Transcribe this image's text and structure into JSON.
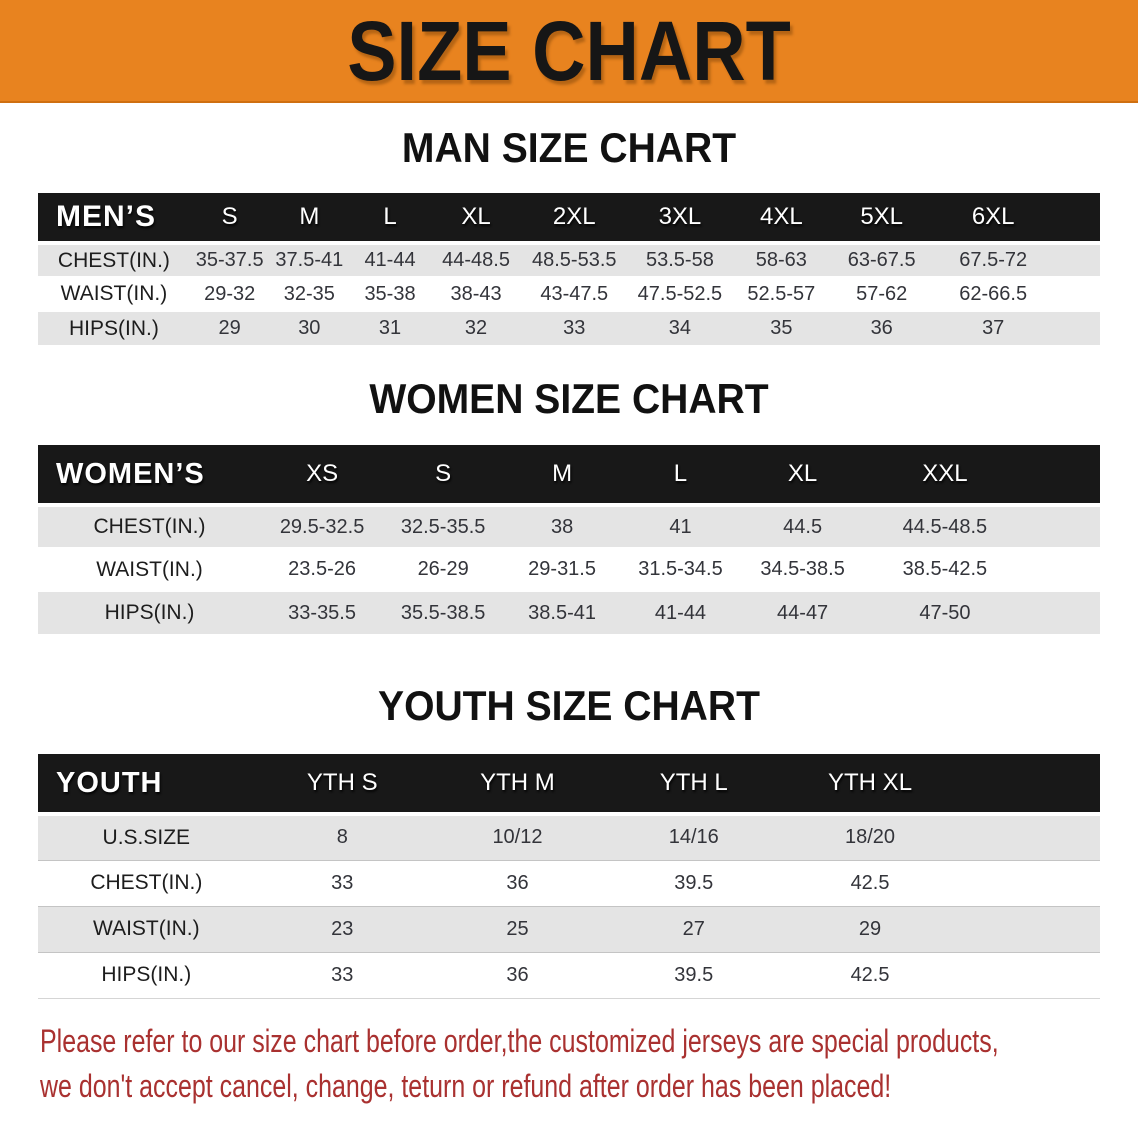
{
  "banner": {
    "title": "SIZE CHART"
  },
  "sections": [
    {
      "id": "men",
      "heading": "MAN SIZE CHART",
      "table": {
        "header_label": "MEN’S",
        "columns": [
          "S",
          "M",
          "L",
          "XL",
          "2XL",
          "3XL",
          "4XL",
          "5XL",
          "6XL"
        ],
        "rows": [
          {
            "label": "CHEST(IN.)",
            "values": [
              "35-37.5",
              "37.5-41",
              "41-44",
              "44-48.5",
              "48.5-53.5",
              "53.5-58",
              "58-63",
              "63-67.5",
              "67.5-72"
            ]
          },
          {
            "label": "WAIST(IN.)",
            "values": [
              "29-32",
              "32-35",
              "35-38",
              "38-43",
              "43-47.5",
              "47.5-52.5",
              "52.5-57",
              "57-62",
              "62-66.5"
            ]
          },
          {
            "label": "HIPS(IN.)",
            "values": [
              "29",
              "30",
              "31",
              "32",
              "33",
              "34",
              "35",
              "36",
              "37"
            ]
          }
        ]
      }
    },
    {
      "id": "women",
      "heading": "WOMEN SIZE CHART",
      "table": {
        "header_label": "WOMEN’S",
        "columns": [
          "XS",
          "S",
          "M",
          "L",
          "XL",
          "XXL"
        ],
        "rows": [
          {
            "label": "CHEST(IN.)",
            "values": [
              "29.5-32.5",
              "32.5-35.5",
              "38",
              "41",
              "44.5",
              "44.5-48.5"
            ]
          },
          {
            "label": "WAIST(IN.)",
            "values": [
              "23.5-26",
              "26-29",
              "29-31.5",
              "31.5-34.5",
              "34.5-38.5",
              "38.5-42.5"
            ]
          },
          {
            "label": "HIPS(IN.)",
            "values": [
              "33-35.5",
              "35.5-38.5",
              "38.5-41",
              "41-44",
              "44-47",
              "47-50"
            ]
          }
        ]
      }
    },
    {
      "id": "youth",
      "heading": "YOUTH SIZE CHART",
      "table": {
        "header_label": "YOUTH",
        "columns": [
          "YTH S",
          "YTH M",
          "YTH L",
          "YTH XL"
        ],
        "rows": [
          {
            "label": "U.S.SIZE",
            "values": [
              "8",
              "10/12",
              "14/16",
              "18/20"
            ]
          },
          {
            "label": "CHEST(IN.)",
            "values": [
              "33",
              "36",
              "39.5",
              "42.5"
            ]
          },
          {
            "label": "WAIST(IN.)",
            "values": [
              "23",
              "25",
              "27",
              "29"
            ]
          },
          {
            "label": "HIPS(IN.)",
            "values": [
              "33",
              "36",
              "39.5",
              "42.5"
            ]
          }
        ]
      }
    }
  ],
  "disclaimer": {
    "lines": [
      "Please refer to our size chart before order,the customized jerseys are special products,",
      "we don't accept cancel, change, teturn or refund after order has been placed!"
    ]
  },
  "colors": {
    "banner_orange": "#E8831F",
    "header_bar_black": "#181818",
    "row_gray": "#E4E4E4",
    "disclaimer_red": "#A93130"
  }
}
